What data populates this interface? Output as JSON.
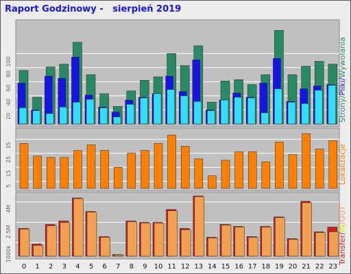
{
  "title": "Raport Godzinowy -   sierpień 2019",
  "colors": {
    "background": "#ececec",
    "plot_background": "#c0c0c0",
    "grid": "#ffffff",
    "strony": "#2a8a66",
    "pliki": "#1515e6",
    "wywolania": "#33ddff",
    "lokalizacje": "#ff8000",
    "transfer": "#d61a1a",
    "in": "#e6e600",
    "out": "#f0a050",
    "axis_text": "#666666"
  },
  "legends": {
    "top": {
      "strony": "Strony",
      "sep1": "/",
      "pliki": "Pliki",
      "sep2": "/",
      "wywolania": "Wywołania"
    },
    "middle": {
      "lokalizacje": "Lokalizacje"
    },
    "bottom": {
      "transfer": "Transfer",
      "sep1": "/",
      "in": "IN",
      "sep2": "/",
      "out": "OUT"
    }
  },
  "chart_data": [
    {
      "type": "bar",
      "name": "strony-pliki-wywolania",
      "categories": [
        "0",
        "1",
        "2",
        "3",
        "4",
        "5",
        "6",
        "7",
        "8",
        "9",
        "10",
        "11",
        "12",
        "13",
        "14",
        "15",
        "16",
        "17",
        "18",
        "19",
        "20",
        "21",
        "22",
        "23"
      ],
      "yticks": [
        20,
        40,
        60,
        80,
        100
      ],
      "ylim": [
        0,
        142
      ],
      "series": [
        {
          "name": "Strony",
          "color_key": "strony",
          "values": [
            76,
            38,
            81,
            85,
            116,
            70,
            43,
            25,
            47,
            62,
            67,
            100,
            83,
            111,
            31,
            61,
            63,
            56,
            70,
            133,
            70,
            82,
            89,
            85
          ]
        },
        {
          "name": "Pliki",
          "color_key": "pliki",
          "values": [
            58,
            20,
            68,
            65,
            95,
            41,
            24,
            17,
            34,
            38,
            43,
            68,
            46,
            91,
            20,
            34,
            44,
            38,
            58,
            93,
            32,
            50,
            54,
            56
          ]
        },
        {
          "name": "Wywołania",
          "color_key": "wywolania",
          "values": [
            23,
            19,
            15,
            24,
            31,
            35,
            23,
            10,
            28,
            37,
            43,
            49,
            40,
            32,
            19,
            34,
            38,
            37,
            16,
            50,
            31,
            29,
            48,
            55
          ]
        }
      ]
    },
    {
      "type": "bar",
      "name": "lokalizacje",
      "categories": [
        "0",
        "1",
        "2",
        "3",
        "4",
        "5",
        "6",
        "7",
        "8",
        "9",
        "10",
        "11",
        "12",
        "13",
        "14",
        "15",
        "16",
        "17",
        "18",
        "19",
        "20",
        "21",
        "22",
        "23"
      ],
      "yticks": [
        5,
        15,
        25,
        35
      ],
      "ylim": [
        0,
        40
      ],
      "series": [
        {
          "name": "Lokalizacje",
          "color_key": "lokalizacje",
          "values": [
            32,
            23,
            22,
            22,
            27,
            31,
            27,
            15,
            25,
            27,
            32,
            38,
            30,
            21,
            9,
            20,
            26,
            26,
            19,
            33,
            24,
            39,
            28,
            34
          ]
        }
      ]
    },
    {
      "type": "bar",
      "name": "transfer",
      "categories": [
        "0",
        "1",
        "2",
        "3",
        "4",
        "5",
        "6",
        "7",
        "8",
        "9",
        "10",
        "11",
        "12",
        "13",
        "14",
        "15",
        "16",
        "17",
        "18",
        "19",
        "20",
        "21",
        "22",
        "23"
      ],
      "yticks": [
        1000,
        2500,
        4000
      ],
      "ytick_labels": [
        "1000k",
        "2.5M",
        "4M"
      ],
      "ylim": [
        0,
        4400
      ],
      "series": [
        {
          "name": "Transfer",
          "color_key": "transfer",
          "values": [
            2050,
            900,
            2350,
            2600,
            4300,
            3300,
            1450,
            120,
            2600,
            2500,
            2500,
            3450,
            2050,
            4450,
            1400,
            2350,
            2200,
            1450,
            2200,
            2900,
            1300,
            4050,
            1800,
            2150
          ]
        },
        {
          "name": "OUT",
          "color_key": "out",
          "values": [
            2000,
            800,
            2250,
            2500,
            4250,
            3250,
            1400,
            90,
            2550,
            2450,
            2450,
            3350,
            1950,
            4400,
            1350,
            2300,
            2150,
            1400,
            2150,
            2850,
            1250,
            3950,
            1750,
            1800
          ]
        }
      ]
    }
  ]
}
